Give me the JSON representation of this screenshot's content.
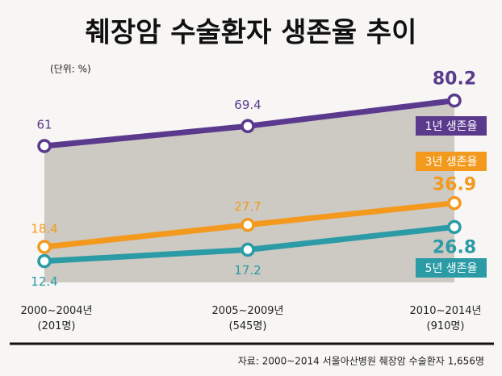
{
  "chart_data": {
    "type": "line",
    "title": "췌장암 수술환자 생존율 추이",
    "unit_note": "(단위: %)",
    "source": "자료: 2000~2014  서울아산병원  췌장암  수술환자  1,656명",
    "categories": [
      "2000~2004년\n(201명)",
      "2005~2009년\n(545명)",
      "2010~2014년\n(910명)"
    ],
    "series": [
      {
        "name": "1년 생존율",
        "color": "#5b3a8e",
        "values": [
          61,
          69.4,
          80.2
        ]
      },
      {
        "name": "3년 생존율",
        "color": "#f39a1e",
        "values": [
          18.4,
          27.7,
          36.9
        ]
      },
      {
        "name": "5년 생존율",
        "color": "#2b9ba6",
        "values": [
          12.4,
          17.2,
          26.8
        ]
      }
    ]
  }
}
